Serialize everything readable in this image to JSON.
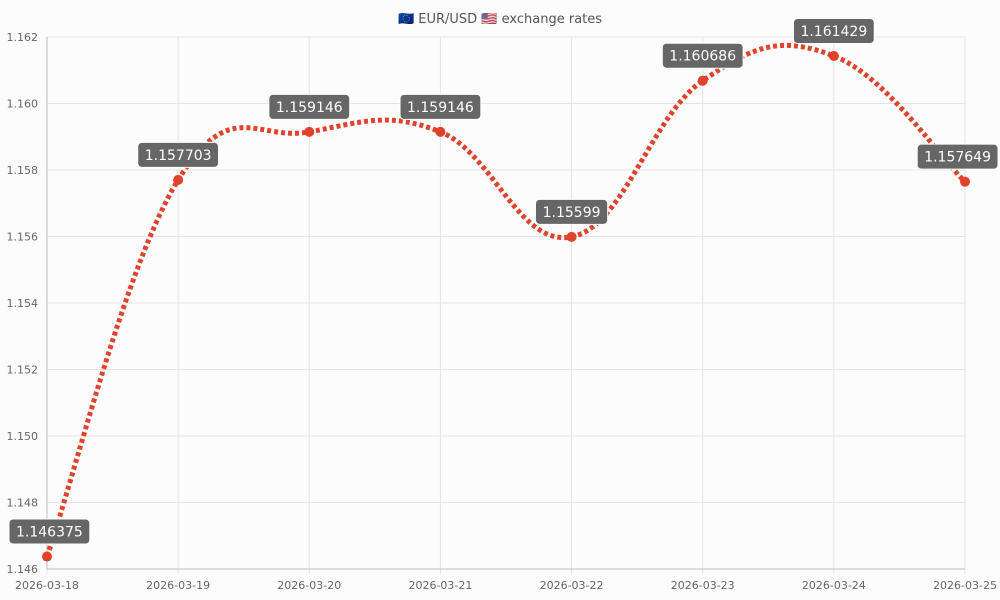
{
  "chart_data": {
    "type": "line",
    "title": "🇪🇺 EUR/USD 🇺🇸 exchange rates",
    "xlabel": "",
    "ylabel": "",
    "categories": [
      "2026-03-18",
      "2026-03-19",
      "2026-03-20",
      "2026-03-21",
      "2026-03-22",
      "2026-03-23",
      "2026-03-24",
      "2026-03-25"
    ],
    "series": [
      {
        "values": [
          1.146375,
          1.157703,
          1.159146,
          1.159146,
          1.15599,
          1.160686,
          1.161429,
          1.157649
        ],
        "color": "#e0432b",
        "line_style": "dotted",
        "smooth": true,
        "data_labels": [
          "1.146375",
          "1.157703",
          "1.159146",
          "1.159146",
          "1.15599",
          "1.160686",
          "1.161429",
          "1.157649"
        ]
      }
    ],
    "ylim": [
      1.146,
      1.162
    ],
    "yticks": [
      "1.146",
      "1.148",
      "1.150",
      "1.152",
      "1.154",
      "1.156",
      "1.158",
      "1.160",
      "1.162"
    ],
    "grid": true,
    "legend": "none",
    "label_box_color": "#666666",
    "label_text_color": "#ffffff",
    "grid_color": "#e4e4e4",
    "axis_color": "#bdbdbd"
  }
}
